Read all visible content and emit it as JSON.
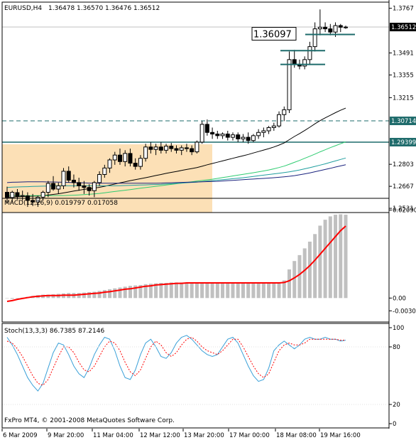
{
  "chart_data": [
    {
      "type": "candlestick",
      "title": "EURUSD,H4",
      "ohlc_header": [
        "1.36478",
        "1.36570",
        "1.36476",
        "1.36512"
      ],
      "y_ticks": [
        1.3767,
        1.3491,
        1.3355,
        1.3215,
        1.2803,
        1.2667,
        1.2531
      ],
      "ylim": [
        1.2505,
        1.3805
      ],
      "price_tags": [
        {
          "value": 1.36512,
          "label": "1.36512",
          "style": "current"
        },
        {
          "value": 1.30714,
          "label": "1.30714",
          "style": "level"
        },
        {
          "value": 1.29399,
          "label": "1.29399",
          "style": "level"
        }
      ],
      "annotation": {
        "label": "1.36097",
        "value": 1.36097
      },
      "candles": [
        [
          1.263,
          1.2665,
          1.256,
          1.2598
        ],
        [
          1.2598,
          1.264,
          1.257,
          1.263
        ],
        [
          1.2628,
          1.265,
          1.2585,
          1.2605
        ],
        [
          1.2605,
          1.264,
          1.258,
          1.261
        ],
        [
          1.2608,
          1.263,
          1.254,
          1.258
        ],
        [
          1.258,
          1.262,
          1.2545,
          1.257
        ],
        [
          1.257,
          1.261,
          1.254,
          1.26
        ],
        [
          1.26,
          1.264,
          1.258,
          1.263
        ],
        [
          1.263,
          1.27,
          1.26,
          1.2685
        ],
        [
          1.2685,
          1.273,
          1.264,
          1.265
        ],
        [
          1.265,
          1.269,
          1.262,
          1.267
        ],
        [
          1.267,
          1.278,
          1.265,
          1.276
        ],
        [
          1.276,
          1.279,
          1.269,
          1.2705
        ],
        [
          1.2705,
          1.274,
          1.266,
          1.269
        ],
        [
          1.269,
          1.272,
          1.264,
          1.267
        ],
        [
          1.267,
          1.27,
          1.262,
          1.266
        ],
        [
          1.266,
          1.268,
          1.261,
          1.264
        ],
        [
          1.264,
          1.27,
          1.26,
          1.269
        ],
        [
          1.269,
          1.276,
          1.267,
          1.274
        ],
        [
          1.274,
          1.28,
          1.272,
          1.278
        ],
        [
          1.278,
          1.284,
          1.275,
          1.283
        ],
        [
          1.283,
          1.288,
          1.28,
          1.286
        ],
        [
          1.286,
          1.29,
          1.28,
          1.282
        ],
        [
          1.282,
          1.289,
          1.279,
          1.287
        ],
        [
          1.287,
          1.29,
          1.279,
          1.281
        ],
        [
          1.281,
          1.284,
          1.277,
          1.279
        ],
        [
          1.279,
          1.286,
          1.277,
          1.284
        ],
        [
          1.284,
          1.293,
          1.282,
          1.291
        ],
        [
          1.291,
          1.294,
          1.287,
          1.2895
        ],
        [
          1.2895,
          1.293,
          1.286,
          1.291
        ],
        [
          1.291,
          1.294,
          1.287,
          1.289
        ],
        [
          1.289,
          1.293,
          1.287,
          1.2915
        ],
        [
          1.2915,
          1.2935,
          1.288,
          1.29
        ],
        [
          1.29,
          1.292,
          1.287,
          1.289
        ],
        [
          1.289,
          1.292,
          1.286,
          1.2905
        ],
        [
          1.2905,
          1.293,
          1.288,
          1.29
        ],
        [
          1.29,
          1.292,
          1.286,
          1.288
        ],
        [
          1.288,
          1.295,
          1.287,
          1.294
        ],
        [
          1.294,
          1.307,
          1.293,
          1.305
        ],
        [
          1.305,
          1.308,
          1.298,
          1.3
        ],
        [
          1.3,
          1.303,
          1.296,
          1.299
        ],
        [
          1.299,
          1.301,
          1.296,
          1.298
        ],
        [
          1.298,
          1.3,
          1.296,
          1.299
        ],
        [
          1.299,
          1.301,
          1.295,
          1.297
        ],
        [
          1.297,
          1.3,
          1.295,
          1.2985
        ],
        [
          1.2985,
          1.3,
          1.294,
          1.296
        ],
        [
          1.296,
          1.299,
          1.294,
          1.297
        ],
        [
          1.297,
          1.3,
          1.293,
          1.295
        ],
        [
          1.295,
          1.299,
          1.294,
          1.298
        ],
        [
          1.298,
          1.302,
          1.296,
          1.3
        ],
        [
          1.3,
          1.303,
          1.297,
          1.301
        ],
        [
          1.301,
          1.304,
          1.299,
          1.303
        ],
        [
          1.303,
          1.306,
          1.301,
          1.304
        ],
        [
          1.304,
          1.313,
          1.303,
          1.311
        ],
        [
          1.311,
          1.316,
          1.307,
          1.314
        ],
        [
          1.314,
          1.35,
          1.312,
          1.345
        ],
        [
          1.345,
          1.351,
          1.34,
          1.342
        ],
        [
          1.342,
          1.345,
          1.339,
          1.341
        ],
        [
          1.341,
          1.347,
          1.339,
          1.345
        ],
        [
          1.345,
          1.356,
          1.342,
          1.353
        ],
        [
          1.353,
          1.368,
          1.35,
          1.364
        ],
        [
          1.364,
          1.376,
          1.36,
          1.365
        ],
        [
          1.365,
          1.368,
          1.362,
          1.364
        ],
        [
          1.364,
          1.367,
          1.36,
          1.362
        ],
        [
          1.362,
          1.368,
          1.359,
          1.366
        ],
        [
          1.366,
          1.367,
          1.362,
          1.365
        ],
        [
          1.365,
          1.366,
          1.364,
          1.3651
        ]
      ],
      "ma_series": [
        {
          "color": "#000000",
          "values": [
            1.26,
            1.26,
            1.2602,
            1.2604,
            1.2605,
            1.2606,
            1.2608,
            1.261,
            1.2613,
            1.2617,
            1.2621,
            1.2626,
            1.2632,
            1.2638,
            1.2643,
            1.2648,
            1.2652,
            1.2656,
            1.2661,
            1.2667,
            1.2674,
            1.2681,
            1.2688,
            1.2695,
            1.2702,
            1.2708,
            1.2714,
            1.272,
            1.2727,
            1.2734,
            1.274,
            1.2747,
            1.2753,
            1.2759,
            1.2765,
            1.2771,
            1.2777,
            1.2783,
            1.2791,
            1.28,
            1.2808,
            1.2816,
            1.2824,
            1.2832,
            1.284,
            1.2848,
            1.2856,
            1.2864,
            1.2873,
            1.2882,
            1.2891,
            1.29,
            1.291,
            1.2922,
            1.2935,
            1.2955,
            1.2975,
            1.2993,
            1.3012,
            1.3032,
            1.3053,
            1.3073,
            1.309,
            1.3106,
            1.3122,
            1.3137,
            1.315
          ]
        },
        {
          "color": "#2ecc71",
          "values": [
            1.261,
            1.261,
            1.261,
            1.261,
            1.2609,
            1.2609,
            1.2609,
            1.2609,
            1.2609,
            1.2609,
            1.261,
            1.261,
            1.2611,
            1.2612,
            1.2614,
            1.2616,
            1.2618,
            1.262,
            1.2623,
            1.2627,
            1.2631,
            1.2635,
            1.2639,
            1.2643,
            1.2647,
            1.2651,
            1.2655,
            1.2659,
            1.2663,
            1.2667,
            1.2671,
            1.2675,
            1.2679,
            1.2683,
            1.2687,
            1.2691,
            1.2695,
            1.2699,
            1.2703,
            1.2707,
            1.2711,
            1.2716,
            1.2721,
            1.2726,
            1.2731,
            1.2736,
            1.2741,
            1.2746,
            1.2751,
            1.2756,
            1.2762,
            1.2768,
            1.2775,
            1.2783,
            1.2792,
            1.2803,
            1.2815,
            1.2827,
            1.284,
            1.2853,
            1.2866,
            1.288,
            1.2893,
            1.2906,
            1.2918,
            1.293,
            1.2942
          ]
        },
        {
          "color": "#1f9e9e",
          "values": [
            1.266,
            1.2662,
            1.2663,
            1.2664,
            1.2665,
            1.2666,
            1.2667,
            1.2668,
            1.2669,
            1.267,
            1.267,
            1.267,
            1.267,
            1.267,
            1.267,
            1.267,
            1.267,
            1.267,
            1.267,
            1.267,
            1.267,
            1.267,
            1.2671,
            1.2672,
            1.2673,
            1.2674,
            1.2675,
            1.2676,
            1.2677,
            1.2678,
            1.2679,
            1.2681,
            1.2683,
            1.2685,
            1.2687,
            1.2689,
            1.2691,
            1.2693,
            1.2696,
            1.2699,
            1.2702,
            1.2705,
            1.2708,
            1.2711,
            1.2714,
            1.2717,
            1.272,
            1.2724,
            1.2728,
            1.2732,
            1.2736,
            1.274,
            1.2744,
            1.2748,
            1.2752,
            1.2756,
            1.2762,
            1.2768,
            1.2775,
            1.2782,
            1.279,
            1.2798,
            1.2806,
            1.2815,
            1.2824,
            1.2833,
            1.2842
          ]
        },
        {
          "color": "#1a237e",
          "values": [
            1.269,
            1.2692,
            1.2693,
            1.2694,
            1.2695,
            1.2695,
            1.2695,
            1.2695,
            1.2694,
            1.2694,
            1.2693,
            1.2692,
            1.2691,
            1.269,
            1.2689,
            1.2688,
            1.2687,
            1.2686,
            1.2686,
            1.2686,
            1.2686,
            1.2686,
            1.2686,
            1.2686,
            1.2686,
            1.2686,
            1.2686,
            1.2686,
            1.2686,
            1.2686,
            1.2687,
            1.2688,
            1.2689,
            1.269,
            1.2691,
            1.2692,
            1.2693,
            1.2694,
            1.2695,
            1.2696,
            1.2697,
            1.2698,
            1.27,
            1.2702,
            1.2704,
            1.2706,
            1.2708,
            1.271,
            1.2712,
            1.2714,
            1.2716,
            1.2718,
            1.272,
            1.2723,
            1.2726,
            1.2729,
            1.2733,
            1.2738,
            1.2744,
            1.275,
            1.2757,
            1.2764,
            1.2771,
            1.2778,
            1.2786,
            1.2793,
            1.28
          ]
        }
      ]
    },
    {
      "type": "histogram-with-signal",
      "title": "MACD(12,26,9) 0.019797 0.017058",
      "y_ticks": [
        0.0209,
        0.0,
        -0.00303
      ],
      "y_tick_labels": [
        "0.02090",
        "0.00",
        "-0.00303"
      ],
      "ylim": [
        -0.004,
        0.022
      ],
      "histogram_color": "#c0c0c0",
      "signal_color": "#ff0000",
      "histogram": [
        0.0,
        -0.0002,
        -0.0001,
        0.0001,
        0.0003,
        0.0005,
        0.0007,
        0.0008,
        0.0008,
        0.0009,
        0.001,
        0.0011,
        0.0012,
        0.0012,
        0.0012,
        0.0013,
        0.0014,
        0.0015,
        0.0017,
        0.0019,
        0.0021,
        0.0023,
        0.0025,
        0.0027,
        0.0029,
        0.003,
        0.0031,
        0.0033,
        0.0034,
        0.0035,
        0.0036,
        0.0036,
        0.0037,
        0.0037,
        0.0037,
        0.0037,
        0.0037,
        0.0037,
        0.0037,
        0.0036,
        0.0036,
        0.0036,
        0.0036,
        0.0036,
        0.0036,
        0.0036,
        0.0036,
        0.0036,
        0.0036,
        0.0035,
        0.0035,
        0.0035,
        0.0035,
        0.0035,
        0.0042,
        0.0068,
        0.0088,
        0.0102,
        0.0118,
        0.0134,
        0.0152,
        0.0172,
        0.0186,
        0.0194,
        0.0198,
        0.0199,
        0.0198
      ],
      "signal": [
        -0.0008,
        -0.0006,
        -0.0003,
        -0.0001,
        0.0001,
        0.0003,
        0.0004,
        0.0005,
        0.0006,
        0.0006,
        0.0006,
        0.0007,
        0.0007,
        0.0007,
        0.0008,
        0.0009,
        0.001,
        0.0011,
        0.0012,
        0.0014,
        0.0015,
        0.0017,
        0.0019,
        0.0021,
        0.0022,
        0.0024,
        0.0026,
        0.0028,
        0.0029,
        0.0031,
        0.0032,
        0.0033,
        0.0034,
        0.0035,
        0.0035,
        0.0036,
        0.0036,
        0.0036,
        0.0036,
        0.0036,
        0.0036,
        0.0036,
        0.0036,
        0.0036,
        0.0036,
        0.0036,
        0.0036,
        0.0036,
        0.0036,
        0.0036,
        0.0036,
        0.0036,
        0.0036,
        0.0036,
        0.0037,
        0.0041,
        0.0048,
        0.0056,
        0.0066,
        0.0077,
        0.009,
        0.0104,
        0.0118,
        0.0132,
        0.0146,
        0.016,
        0.0171
      ]
    },
    {
      "type": "line",
      "title": "Stoch(13,3,3) 86.7385 87.2146",
      "y_ticks": [
        100,
        80,
        20,
        0
      ],
      "ylim": [
        0,
        100
      ],
      "series": [
        {
          "color": "#3aa0d8",
          "dash": false,
          "values": [
            90,
            82,
            72,
            60,
            48,
            40,
            34,
            42,
            58,
            74,
            84,
            82,
            72,
            60,
            52,
            48,
            58,
            72,
            82,
            90,
            88,
            76,
            60,
            48,
            46,
            56,
            72,
            84,
            88,
            80,
            70,
            68,
            74,
            84,
            90,
            92,
            88,
            82,
            76,
            72,
            70,
            72,
            80,
            88,
            90,
            84,
            72,
            60,
            50,
            44,
            46,
            58,
            76,
            82,
            86,
            82,
            78,
            82,
            88,
            90,
            88,
            88,
            90,
            88,
            88,
            86,
            87
          ]
        },
        {
          "color": "#ff0000",
          "dash": true,
          "values": [
            86,
            84,
            78,
            70,
            60,
            50,
            42,
            40,
            46,
            58,
            70,
            80,
            80,
            74,
            64,
            56,
            54,
            60,
            70,
            80,
            86,
            84,
            76,
            64,
            54,
            50,
            56,
            68,
            80,
            86,
            82,
            74,
            70,
            74,
            82,
            88,
            90,
            86,
            80,
            76,
            74,
            72,
            76,
            82,
            88,
            88,
            80,
            70,
            60,
            52,
            48,
            52,
            64,
            76,
            82,
            84,
            82,
            82,
            84,
            88,
            88,
            88,
            88,
            88,
            88,
            87,
            87
          ]
        }
      ]
    }
  ],
  "x_tick_labels": [
    "6 Mar 2009",
    "9 Mar 20:00",
    "11 Mar 04:00",
    "12 Mar 12:00",
    "13 Mar 20:00",
    "17 Mar 00:00",
    "18 Mar 08:00",
    "19 Mar 16:00"
  ],
  "footer_text": "FxPro MT4, © 2001-2008 MetaQuotes Software Corp.",
  "colors": {
    "background": "#ffffff",
    "highlight_zone": "#fce0b6",
    "level_line": "#1e6b6b",
    "current_price_line": "#c0c0c0",
    "candle_bull": "#ffffff",
    "candle_bear": "#000000"
  }
}
